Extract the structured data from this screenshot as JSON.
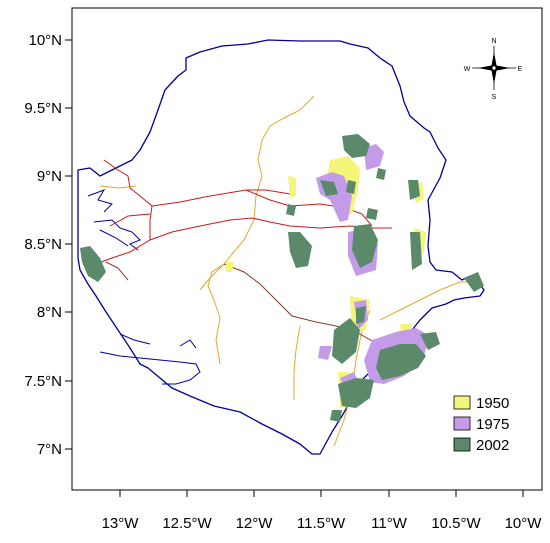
{
  "map": {
    "x_ticks": [
      "13°W",
      "12.5°W",
      "12°W",
      "11.5°W",
      "11°W",
      "10.5°W",
      "10°W"
    ],
    "y_ticks": [
      "10°N",
      "9.5°N",
      "9°N",
      "8.5°N",
      "8°N",
      "7.5°N",
      "7°N"
    ],
    "compass": {
      "n": "N",
      "s": "S",
      "e": "E",
      "w": "W"
    },
    "legend": [
      {
        "label": "1950",
        "color": "#f5f57a"
      },
      {
        "label": "1975",
        "color": "#c39be8"
      },
      {
        "label": "2002",
        "color": "#5a8a6a"
      }
    ],
    "colors": {
      "border": "#000099",
      "roads_primary": "#cc1a1a",
      "roads_secondary": "#e0a830",
      "roads_tertiary": "#8a3a2a"
    }
  }
}
